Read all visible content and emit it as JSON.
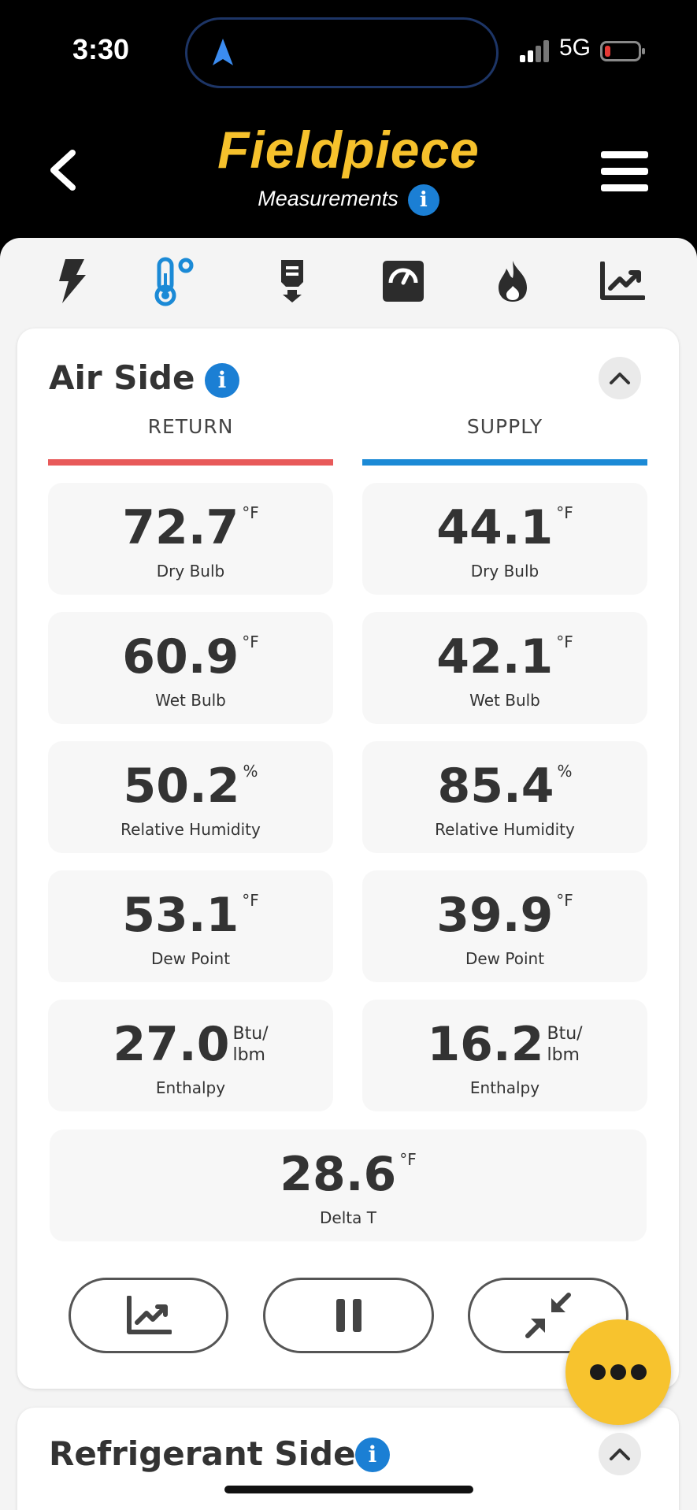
{
  "status_bar": {
    "time": "3:30",
    "network": "5G"
  },
  "header": {
    "brand": "Fieldpiece",
    "subtitle": "Measurements"
  },
  "tabs": [
    {
      "icon": "lightning-icon",
      "active": false
    },
    {
      "icon": "thermometer-icon",
      "active": true
    },
    {
      "icon": "probe-icon",
      "active": false
    },
    {
      "icon": "gauge-icon",
      "active": false
    },
    {
      "icon": "flame-icon",
      "active": false
    },
    {
      "icon": "chart-icon",
      "active": false
    }
  ],
  "air_side": {
    "title": "Air Side",
    "return_label": "RETURN",
    "supply_label": "SUPPLY",
    "return": [
      {
        "value": "72.7",
        "unit": "°F",
        "label": "Dry Bulb"
      },
      {
        "value": "60.9",
        "unit": "°F",
        "label": "Wet Bulb"
      },
      {
        "value": "50.2",
        "unit": "%",
        "label": "Relative Humidity"
      },
      {
        "value": "53.1",
        "unit": "°F",
        "label": "Dew Point"
      },
      {
        "value": "27.0",
        "unit_line1": "Btu/",
        "unit_line2": "lbm",
        "label": "Enthalpy"
      }
    ],
    "supply": [
      {
        "value": "44.1",
        "unit": "°F",
        "label": "Dry Bulb"
      },
      {
        "value": "42.1",
        "unit": "°F",
        "label": "Wet Bulb"
      },
      {
        "value": "85.4",
        "unit": "%",
        "label": "Relative Humidity"
      },
      {
        "value": "39.9",
        "unit": "°F",
        "label": "Dew Point"
      },
      {
        "value": "16.2",
        "unit_line1": "Btu/",
        "unit_line2": "lbm",
        "label": "Enthalpy"
      }
    ],
    "delta": {
      "value": "28.6",
      "unit": "°F",
      "label": "Delta T"
    }
  },
  "refrigerant_side": {
    "title": "Refrigerant Side"
  },
  "colors": {
    "brand": "#f6c12c",
    "return_line": "#e85a5a",
    "supply_line": "#1b8ad6",
    "info": "#1b7fd4",
    "fab": "#f7c32e"
  }
}
